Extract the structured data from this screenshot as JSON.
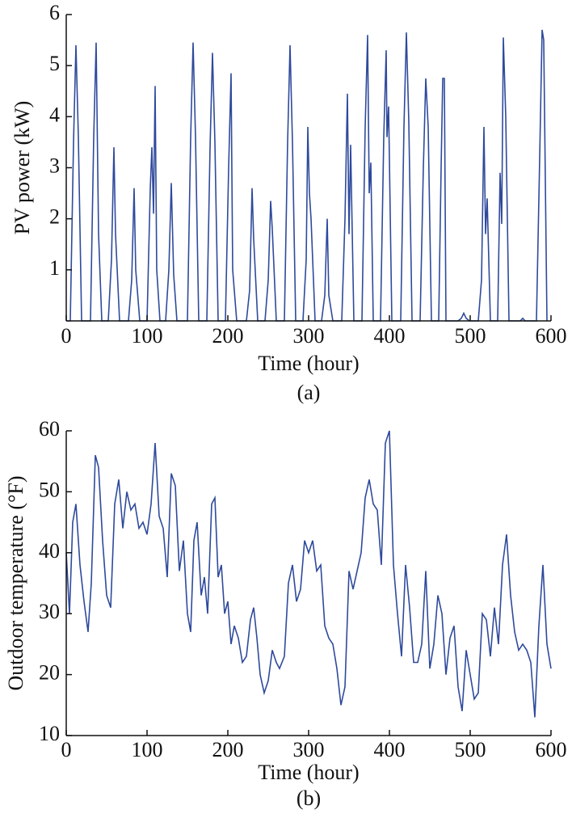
{
  "chart_data": [
    {
      "type": "line",
      "caption": "(a)",
      "xlabel": "Time (hour)",
      "ylabel": "PV power (kW)",
      "color": "#2f4a9c",
      "xlim": [
        0,
        600
      ],
      "xticks": [
        0,
        100,
        200,
        300,
        400,
        500,
        600
      ],
      "ylim": [
        0,
        6
      ],
      "yticks": [
        1,
        2,
        3,
        4,
        5,
        6
      ],
      "x": [
        0,
        5,
        9,
        12,
        15,
        19,
        30,
        34,
        37,
        40,
        44,
        52,
        56,
        59,
        61,
        66,
        77,
        81,
        84,
        86,
        91,
        100,
        104,
        106,
        108,
        110,
        112,
        116,
        123,
        127,
        130,
        133,
        137,
        150,
        154,
        157,
        160,
        164,
        174,
        178,
        181,
        184,
        188,
        197,
        201,
        204,
        206,
        211,
        223,
        227,
        230,
        232,
        237,
        246,
        250,
        253,
        255,
        260,
        270,
        274,
        277,
        280,
        284,
        293,
        297,
        299,
        301,
        303,
        308,
        316,
        320,
        323,
        325,
        330,
        341,
        345,
        348,
        350,
        352,
        356,
        366,
        370,
        373,
        375,
        377,
        380,
        389,
        393,
        396,
        397,
        399,
        403,
        414,
        418,
        421,
        424,
        428,
        438,
        442,
        445,
        448,
        452,
        461,
        464,
        466,
        468,
        470,
        485,
        489,
        492,
        495,
        499,
        510,
        514,
        517,
        519,
        521,
        525,
        534,
        537,
        539,
        541,
        544,
        548,
        562,
        565,
        568,
        582,
        586,
        589,
        591,
        595
      ],
      "values": [
        0,
        0,
        3.5,
        5.4,
        3.6,
        0,
        0,
        3.6,
        5.45,
        1.7,
        0,
        0,
        1.2,
        3.4,
        1.7,
        0,
        0,
        0.8,
        2.6,
        1.0,
        0,
        0,
        2.6,
        3.4,
        2.1,
        4.6,
        1.0,
        0,
        0,
        1.0,
        2.7,
        0.9,
        0,
        0,
        3.6,
        5.45,
        3.6,
        0,
        0,
        3.4,
        5.25,
        3.5,
        0,
        0,
        3.0,
        4.85,
        1.0,
        0,
        0,
        0.6,
        2.6,
        1.6,
        0,
        0,
        0.8,
        2.35,
        1.8,
        0,
        0,
        3.5,
        5.4,
        3.5,
        0,
        0,
        1.2,
        3.8,
        2.5,
        2.0,
        0,
        0,
        0.5,
        2.0,
        0.5,
        0,
        0,
        2.0,
        4.45,
        1.7,
        3.45,
        0,
        0,
        3.8,
        5.6,
        2.5,
        3.1,
        0,
        0,
        3.6,
        5.3,
        3.6,
        4.2,
        0,
        0,
        3.8,
        5.65,
        3.9,
        0,
        0,
        3.0,
        4.75,
        3.8,
        0,
        0,
        3.0,
        4.75,
        4.75,
        0,
        0,
        0.05,
        0.15,
        0.05,
        0,
        0,
        0.8,
        3.8,
        1.7,
        2.4,
        0,
        0,
        2.9,
        1.9,
        5.55,
        4.0,
        0,
        0,
        0.05,
        0,
        0,
        3.2,
        5.7,
        5.5,
        0
      ]
    },
    {
      "type": "line",
      "caption": "(b)",
      "xlabel": "Time (hour)",
      "ylabel": "Outdoor temperature (°F)",
      "color": "#2f4a9c",
      "xlim": [
        0,
        600
      ],
      "xticks": [
        0,
        100,
        200,
        300,
        400,
        500,
        600
      ],
      "ylim": [
        10,
        60
      ],
      "yticks": [
        10,
        20,
        30,
        40,
        50,
        60
      ],
      "x": [
        0,
        4,
        8,
        12,
        17,
        22,
        27,
        31,
        36,
        40,
        45,
        50,
        55,
        60,
        65,
        70,
        75,
        80,
        85,
        90,
        95,
        100,
        105,
        110,
        115,
        120,
        125,
        130,
        135,
        140,
        145,
        150,
        154,
        158,
        162,
        167,
        171,
        175,
        180,
        184,
        188,
        192,
        196,
        200,
        204,
        208,
        213,
        218,
        223,
        228,
        232,
        236,
        240,
        245,
        250,
        255,
        260,
        264,
        270,
        275,
        280,
        285,
        290,
        295,
        300,
        305,
        310,
        315,
        320,
        325,
        330,
        335,
        340,
        345,
        350,
        355,
        360,
        365,
        370,
        375,
        380,
        385,
        390,
        395,
        400,
        405,
        410,
        415,
        420,
        425,
        430,
        435,
        440,
        445,
        450,
        455,
        460,
        465,
        470,
        475,
        480,
        485,
        490,
        495,
        500,
        505,
        510,
        515,
        520,
        525,
        530,
        535,
        540,
        545,
        550,
        555,
        560,
        565,
        570,
        575,
        580,
        585,
        590,
        595,
        600
      ],
      "values": [
        40,
        30,
        45,
        48,
        38,
        32,
        27,
        35,
        56,
        54,
        42,
        33,
        31,
        48,
        52,
        44,
        50,
        47,
        48,
        44,
        45,
        43,
        48,
        58,
        46,
        44,
        36,
        53,
        51,
        37,
        42,
        30,
        27,
        42,
        45,
        33,
        36,
        30,
        48,
        49,
        36,
        38,
        30,
        32,
        25,
        28,
        26,
        22,
        23,
        29,
        31,
        26,
        20,
        17,
        19,
        24,
        22,
        21,
        23,
        35,
        38,
        32,
        34,
        42,
        40,
        42,
        37,
        38,
        28,
        26,
        25,
        21,
        15,
        18,
        37,
        34,
        37,
        40,
        49,
        52,
        48,
        47,
        38,
        58,
        60,
        38,
        30,
        23,
        38,
        31,
        22,
        22,
        25,
        37,
        21,
        25,
        33,
        30,
        20,
        26,
        28,
        18,
        14,
        24,
        20,
        16,
        17,
        30,
        29,
        23,
        31,
        25,
        38,
        43,
        33,
        27,
        24,
        25,
        24,
        22,
        13,
        28,
        38,
        25,
        21
      ]
    }
  ]
}
